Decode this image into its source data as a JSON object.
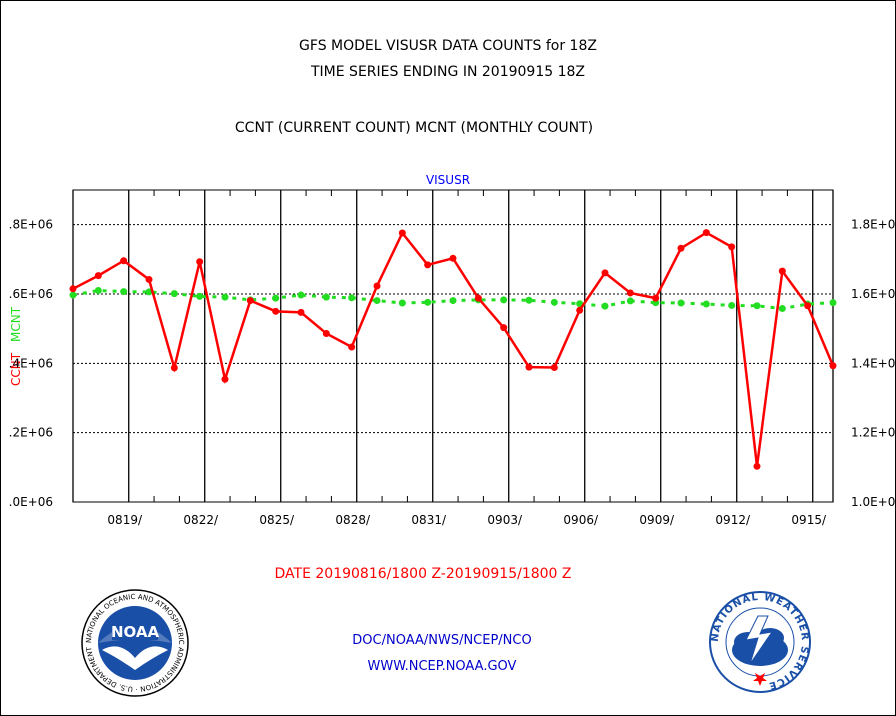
{
  "header": {
    "line1": "GFS MODEL VISUSR DATA COUNTS for 18Z",
    "line2": "TIME SERIES ENDING IN 20190915 18Z",
    "line3": "CCNT (CURRENT COUNT) MCNT (MONTHLY COUNT)"
  },
  "footer": {
    "date_range": "DATE 20190816/1800 Z-20190915/1800 Z",
    "org_line": "DOC/NOAA/NWS/NCEP/NCO",
    "url": "WWW.NCEP.NOAA.GOV"
  },
  "logos": {
    "left_text": "NOAA",
    "left_ring_text": "NATIONAL OCEANIC AND ATMOSPHERIC ADMINISTRATION · U.S. DEPARTMENT OF COMMERCE ·",
    "right_ring_text": "NATIONAL WEATHER SERVICE"
  },
  "colors": {
    "ccnt": "#ff0000",
    "mcnt": "#22dd22",
    "title": "#0000ff",
    "grid": "#000000"
  },
  "chart_data": {
    "type": "line",
    "title": "VISUSR",
    "ylabel_left": [
      "CCNT",
      "MCNT"
    ],
    "ylim": [
      1.0,
      1.9
    ],
    "y_ticks_left": [
      {
        "value": 1.0,
        "label": ".0E+06"
      },
      {
        "value": 1.2,
        "label": ".2E+06"
      },
      {
        "value": 1.4,
        "label": ".4E+06"
      },
      {
        "value": 1.6,
        "label": ".6E+06"
      },
      {
        "value": 1.8,
        "label": ".8E+06"
      }
    ],
    "y_ticks_right": [
      {
        "value": 1.0,
        "label": "1.0E+0"
      },
      {
        "value": 1.2,
        "label": "1.2E+0"
      },
      {
        "value": 1.4,
        "label": "1.4E+0"
      },
      {
        "value": 1.6,
        "label": "1.6E+0"
      },
      {
        "value": 1.8,
        "label": "1.8E+0"
      }
    ],
    "xlim": [
      0,
      30
    ],
    "x_ticks": [
      {
        "value": 2.2,
        "label": "0819/"
      },
      {
        "value": 5.2,
        "label": "0822/"
      },
      {
        "value": 8.2,
        "label": "0825/"
      },
      {
        "value": 11.2,
        "label": "0828/"
      },
      {
        "value": 14.2,
        "label": "0831/"
      },
      {
        "value": 17.2,
        "label": "0903/"
      },
      {
        "value": 20.2,
        "label": "0906/"
      },
      {
        "value": 23.2,
        "label": "0909/"
      },
      {
        "value": 26.2,
        "label": "0912/"
      },
      {
        "value": 29.2,
        "label": "0915/"
      }
    ],
    "x_gridlines": [
      0,
      2.2,
      5.2,
      8.2,
      11.2,
      14.2,
      17.2,
      20.2,
      23.2,
      26.2,
      29.2,
      30
    ],
    "x_ticks_minor": [
      3.2,
      4.2,
      6.2,
      7.2,
      9.2,
      10.2,
      12.2,
      13.2,
      15.2,
      16.2,
      18.2,
      19.2,
      21.2,
      22.2,
      24.2,
      25.2,
      27.2,
      28.2
    ],
    "series": [
      {
        "name": "CCNT",
        "x": [
          0,
          1,
          2,
          3,
          4,
          5,
          6,
          7,
          8,
          9,
          10,
          11,
          12,
          13,
          14,
          15,
          16,
          17,
          18,
          19,
          20,
          21,
          22,
          23,
          24,
          25,
          26,
          27,
          28,
          29,
          30
        ],
        "values": [
          1.615,
          1.653,
          1.696,
          1.642,
          1.387,
          1.693,
          1.354,
          1.581,
          1.55,
          1.547,
          1.486,
          1.447,
          1.623,
          1.776,
          1.684,
          1.703,
          1.588,
          1.503,
          1.389,
          1.388,
          1.553,
          1.661,
          1.603,
          1.588,
          1.732,
          1.777,
          1.736,
          1.103,
          1.666,
          1.566,
          1.393
        ]
      },
      {
        "name": "MCNT",
        "x": [
          0,
          1,
          2,
          3,
          4,
          5,
          6,
          7,
          8,
          9,
          10,
          11,
          12,
          13,
          14,
          15,
          16,
          17,
          18,
          19,
          20,
          21,
          22,
          23,
          24,
          25,
          26,
          27,
          28,
          29,
          30
        ],
        "values": [
          1.597,
          1.61,
          1.607,
          1.606,
          1.601,
          1.593,
          1.591,
          1.583,
          1.588,
          1.597,
          1.591,
          1.589,
          1.581,
          1.574,
          1.576,
          1.581,
          1.583,
          1.583,
          1.582,
          1.576,
          1.572,
          1.565,
          1.58,
          1.575,
          1.574,
          1.571,
          1.567,
          1.566,
          1.558,
          1.571,
          1.575
        ]
      }
    ]
  }
}
